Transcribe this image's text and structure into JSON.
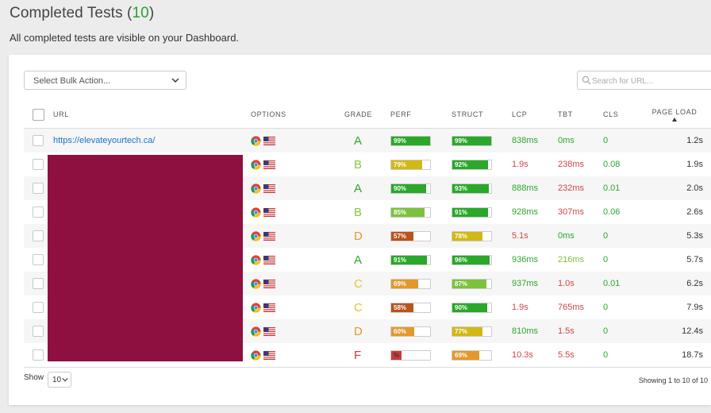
{
  "header": {
    "title": "Completed Tests (",
    "count": "10",
    "close": ")",
    "subtitle": "All completed tests are visible on your Dashboard."
  },
  "bulk_action": {
    "placeholder": "Select Bulk Action..."
  },
  "search": {
    "placeholder": "Search for URL..."
  },
  "columns": {
    "url": "URL",
    "options": "OPTIONS",
    "grade": "GRADE",
    "perf": "PERF",
    "struct": "STRUCT",
    "lcp": "LCP",
    "tbt": "TBT",
    "cls": "CLS",
    "page_load": "PAGE LOAD"
  },
  "colors": {
    "green": "#29a829",
    "lightgreen": "#7cc23c",
    "yellow": "#d2b812",
    "orange": "#e3982a",
    "darkorange": "#b8541c",
    "red": "#cc3a3a"
  },
  "rows": [
    {
      "url": "https://elevateyourtech.ca/",
      "grade": "A",
      "grade_color": "#2ea52e",
      "perf": "99%",
      "perf_value": 99,
      "perf_color": "#29a829",
      "struct": "99%",
      "struct_value": 99,
      "struct_color": "#29a829",
      "lcp": "838ms",
      "lcp_ok": true,
      "tbt": "0ms",
      "tbt_ok": true,
      "cls": "0",
      "load": "1.2s"
    },
    {
      "url": "",
      "grade": "B",
      "grade_color": "#8ec63f",
      "perf": "79%",
      "perf_value": 79,
      "perf_color": "#d2b812",
      "struct": "92%",
      "struct_value": 92,
      "struct_color": "#29a829",
      "lcp": "1.9s",
      "lcp_ok": false,
      "tbt": "238ms",
      "tbt_ok": false,
      "cls": "0.08",
      "load": "1.9s"
    },
    {
      "url": "",
      "grade": "A",
      "grade_color": "#2ea52e",
      "perf": "90%",
      "perf_value": 90,
      "perf_color": "#29a829",
      "struct": "93%",
      "struct_value": 93,
      "struct_color": "#29a829",
      "lcp": "888ms",
      "lcp_ok": true,
      "tbt": "232ms",
      "tbt_ok": false,
      "cls": "0.01",
      "load": "2.0s"
    },
    {
      "url": "",
      "grade": "B",
      "grade_color": "#8ec63f",
      "perf": "85%",
      "perf_value": 85,
      "perf_color": "#7cc23c",
      "struct": "91%",
      "struct_value": 91,
      "struct_color": "#29a829",
      "lcp": "928ms",
      "lcp_ok": true,
      "tbt": "307ms",
      "tbt_ok": false,
      "cls": "0.06",
      "load": "2.6s"
    },
    {
      "url": "",
      "grade": "D",
      "grade_color": "#e3982a",
      "perf": "57%",
      "perf_value": 57,
      "perf_color": "#b8541c",
      "struct": "78%",
      "struct_value": 78,
      "struct_color": "#d2b812",
      "lcp": "5.1s",
      "lcp_ok": false,
      "tbt": "0ms",
      "tbt_ok": true,
      "cls": "0",
      "load": "5.3s"
    },
    {
      "url": "",
      "grade": "A",
      "grade_color": "#2ea52e",
      "perf": "91%",
      "perf_value": 91,
      "perf_color": "#29a829",
      "struct": "96%",
      "struct_value": 96,
      "struct_color": "#29a829",
      "lcp": "936ms",
      "lcp_ok": true,
      "tbt": "216ms",
      "tbt_ok": "mid",
      "cls": "0",
      "load": "5.7s"
    },
    {
      "url": "",
      "grade": "C",
      "grade_color": "#e0c72a",
      "perf": "69%",
      "perf_value": 69,
      "perf_color": "#e3982a",
      "struct": "87%",
      "struct_value": 87,
      "struct_color": "#7cc23c",
      "lcp": "937ms",
      "lcp_ok": true,
      "tbt": "1.0s",
      "tbt_ok": false,
      "cls": "0.01",
      "load": "6.2s"
    },
    {
      "url": "",
      "grade": "C",
      "grade_color": "#e0c72a",
      "perf": "58%",
      "perf_value": 58,
      "perf_color": "#b8541c",
      "struct": "90%",
      "struct_value": 90,
      "struct_color": "#29a829",
      "lcp": "1.9s",
      "lcp_ok": false,
      "tbt": "765ms",
      "tbt_ok": false,
      "cls": "0",
      "load": "7.9s"
    },
    {
      "url": "",
      "grade": "D",
      "grade_color": "#e3982a",
      "perf": "60%",
      "perf_value": 60,
      "perf_color": "#e3982a",
      "struct": "77%",
      "struct_value": 77,
      "struct_color": "#d2b812",
      "lcp": "810ms",
      "lcp_ok": true,
      "tbt": "1.5s",
      "tbt_ok": false,
      "cls": "0",
      "load": "12.4s"
    },
    {
      "url": "",
      "grade": "F",
      "grade_color": "#cc3a3a",
      "perf": "%",
      "perf_value": 27,
      "perf_color": "#cc3a3a",
      "struct": "69%",
      "struct_value": 69,
      "struct_color": "#e3982a",
      "lcp": "10.3s",
      "lcp_ok": false,
      "tbt": "5.5s",
      "tbt_ok": false,
      "cls": "0",
      "load": "18.7s"
    }
  ],
  "footer": {
    "show_label": "Show",
    "page_size": "10",
    "info": "Showing 1 to 10 of 10"
  }
}
